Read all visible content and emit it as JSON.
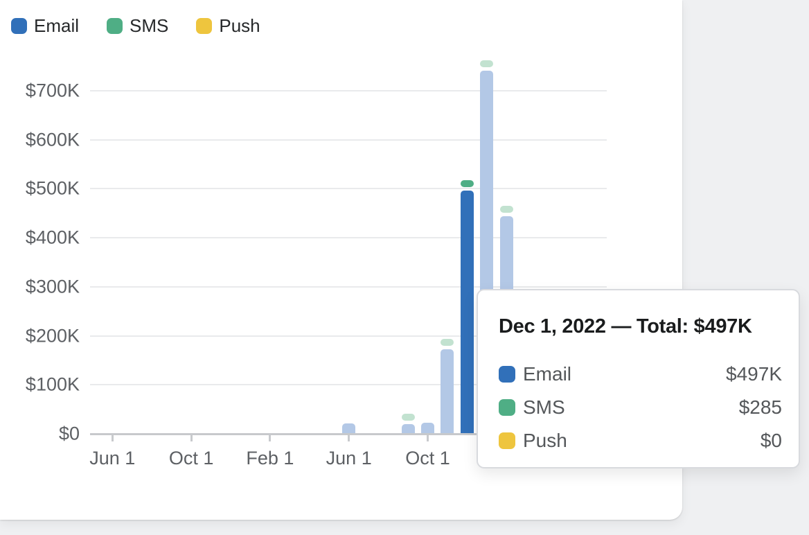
{
  "colors": {
    "email": "#3170B9",
    "sms": "#4FAE85",
    "push": "#EEC53E",
    "email_muted": "#B3C8E6",
    "sms_muted": "#C2E2D0",
    "grid": "#e9eaec",
    "axis": "#c7c9cc"
  },
  "legend": {
    "items": [
      {
        "label": "Email",
        "color": "#3170B9"
      },
      {
        "label": "SMS",
        "color": "#4FAE85"
      },
      {
        "label": "Push",
        "color": "#EEC53E"
      }
    ]
  },
  "chart_data": {
    "type": "bar",
    "stacked": true,
    "title": "",
    "xlabel": "",
    "ylabel": "",
    "ylim": [
      0,
      700000
    ],
    "grid": "horizontal",
    "legend_position": "top-left",
    "series_names": [
      "Email",
      "SMS",
      "Push"
    ],
    "y_ticks": [
      {
        "label": "$700K",
        "value": 700000
      },
      {
        "label": "$600K",
        "value": 600000
      },
      {
        "label": "$500K",
        "value": 500000
      },
      {
        "label": "$400K",
        "value": 400000
      },
      {
        "label": "$300K",
        "value": 300000
      },
      {
        "label": "$200K",
        "value": 200000
      },
      {
        "label": "$100K",
        "value": 100000
      },
      {
        "label": "$0",
        "value": 0
      }
    ],
    "x_ticks": [
      {
        "label": "Jun 1",
        "month_index": 0
      },
      {
        "label": "Oct 1",
        "month_index": 4
      },
      {
        "label": "Feb 1",
        "month_index": 8
      },
      {
        "label": "Jun 1",
        "month_index": 12
      },
      {
        "label": "Oct 1",
        "month_index": 16
      }
    ],
    "bars": [
      {
        "date": "Jun 1, 2022",
        "month_index": 12,
        "email": 21000,
        "sms_shown": false,
        "highlighted": false
      },
      {
        "date": "Sep 1, 2022",
        "month_index": 15,
        "email": 20000,
        "sms_shown": true,
        "highlighted": false
      },
      {
        "date": "Oct 1, 2022",
        "month_index": 16,
        "email": 23000,
        "sms_shown": false,
        "highlighted": false
      },
      {
        "date": "Nov 1, 2022",
        "month_index": 17,
        "email": 172000,
        "sms_shown": true,
        "highlighted": false
      },
      {
        "date": "Dec 1, 2022",
        "month_index": 18,
        "email": 497000,
        "sms": 285,
        "push": 0,
        "sms_shown": true,
        "highlighted": true
      },
      {
        "date": "Jan 1, 2023",
        "month_index": 19,
        "email": 741000,
        "sms_shown": true,
        "highlighted": false
      },
      {
        "date": "Feb 1, 2023",
        "month_index": 20,
        "email": 444000,
        "sms_shown": true,
        "highlighted": false
      }
    ]
  },
  "tooltip": {
    "title": "Dec 1, 2022 — Total: $497K",
    "rows": [
      {
        "label": "Email",
        "value": "$497K",
        "color": "#3170B9"
      },
      {
        "label": "SMS",
        "value": "$285",
        "color": "#4FAE85"
      },
      {
        "label": "Push",
        "value": "$0",
        "color": "#EEC53E"
      }
    ]
  }
}
